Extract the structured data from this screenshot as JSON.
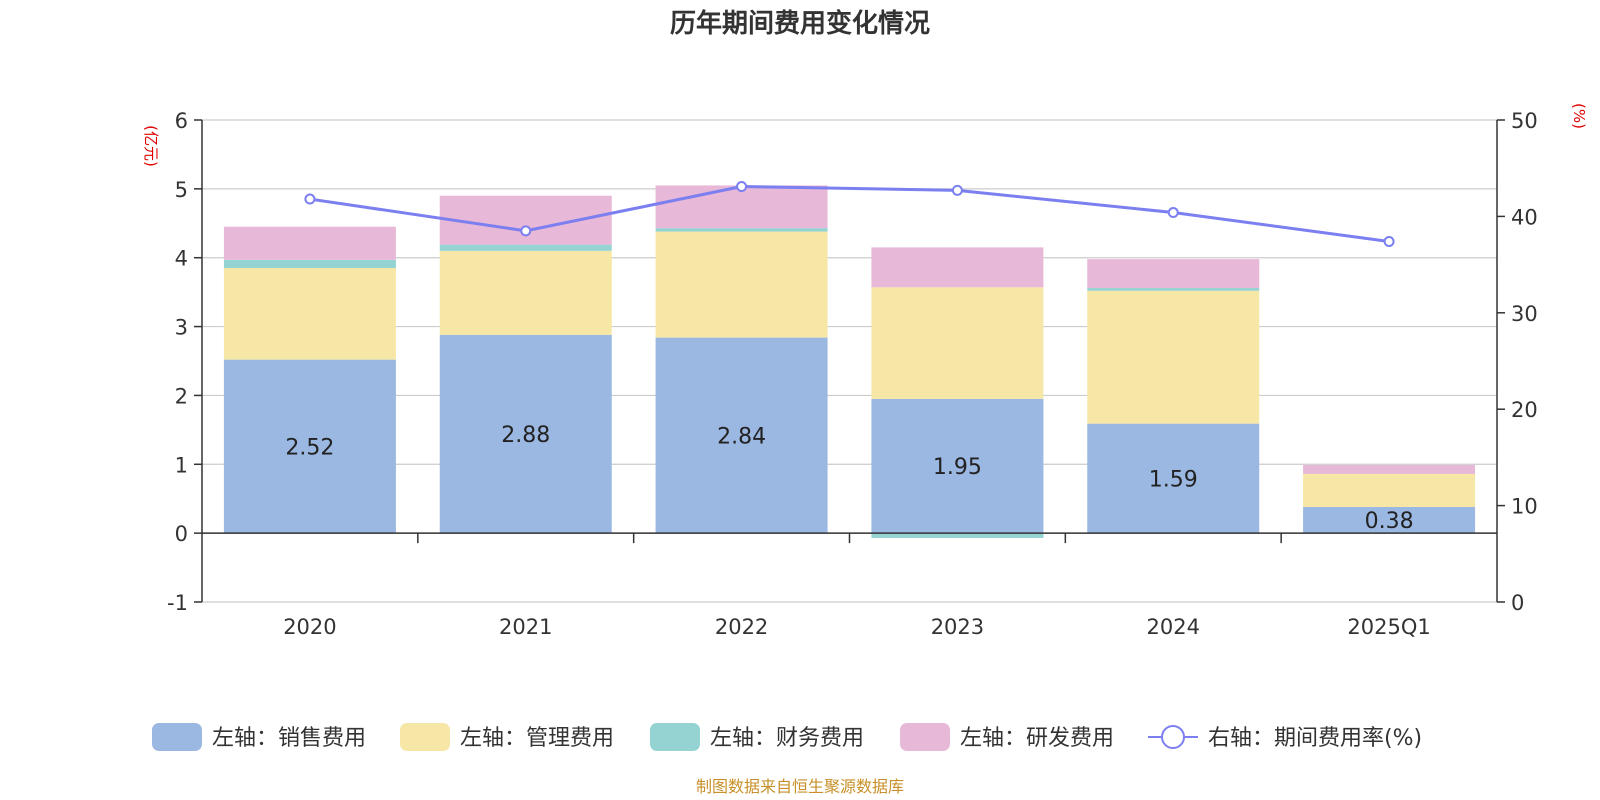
{
  "chart_data": {
    "type": "bar",
    "title": "历年期间费用变化情况",
    "categories": [
      "2020",
      "2021",
      "2022",
      "2023",
      "2024",
      "2025Q1"
    ],
    "y_left": {
      "unit": "(亿元)",
      "min": -1,
      "max": 6,
      "ticks": [
        -1,
        0,
        1,
        2,
        3,
        4,
        5,
        6
      ]
    },
    "y_right": {
      "unit": "(%)",
      "min": 0,
      "max": 50,
      "ticks": [
        0,
        10,
        20,
        30,
        40,
        50
      ]
    },
    "series": [
      {
        "name": "左轴：销售费用",
        "type": "bar",
        "axis": "left",
        "color": "#9bb8e2",
        "values": [
          2.52,
          2.88,
          2.84,
          1.95,
          1.59,
          0.38
        ]
      },
      {
        "name": "左轴：管理费用",
        "type": "bar",
        "axis": "left",
        "color": "#f7e7a6",
        "values": [
          1.33,
          1.22,
          1.54,
          1.62,
          1.93,
          0.48
        ]
      },
      {
        "name": "左轴：财务费用",
        "type": "bar",
        "axis": "left",
        "color": "#95d3d3",
        "values": [
          0.12,
          0.09,
          0.05,
          -0.07,
          0.04,
          0.0
        ]
      },
      {
        "name": "左轴：研发费用",
        "type": "bar",
        "axis": "left",
        "color": "#e8b8d8",
        "values": [
          0.48,
          0.71,
          0.62,
          0.58,
          0.42,
          0.13
        ]
      },
      {
        "name": "右轴：期间费用率(%)",
        "type": "line",
        "axis": "right",
        "color": "#7b7ff0",
        "values": [
          41.8,
          38.5,
          43.1,
          42.7,
          40.4,
          37.4
        ]
      }
    ],
    "data_labels": [
      "2.52",
      "2.88",
      "2.84",
      "1.95",
      "1.59",
      "0.38"
    ],
    "legend_position": "bottom",
    "grid": true
  },
  "source": "制图数据来自恒生聚源数据库"
}
